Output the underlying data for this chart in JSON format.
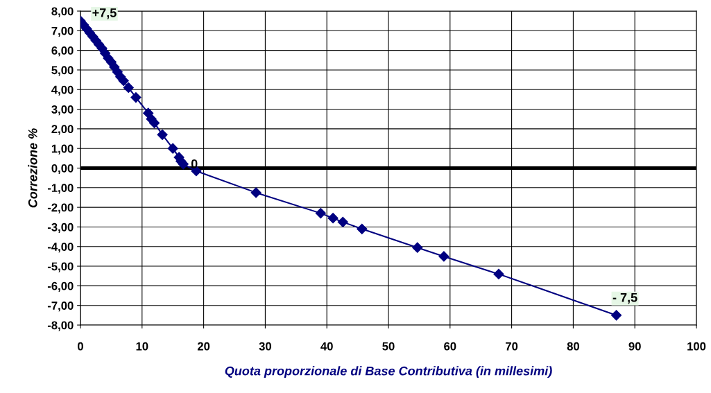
{
  "chart_data": {
    "type": "line",
    "xlabel": "Quota proporzionale di Base Contributiva (in millesimi)",
    "ylabel": "Correzione %",
    "x": [
      0,
      0.5,
      1,
      1.5,
      2,
      2.5,
      3,
      3.5,
      4,
      4.5,
      5,
      5.5,
      6,
      6.5,
      7,
      7.8,
      9,
      11,
      11.5,
      12,
      13.3,
      15,
      16,
      16.3,
      16.7,
      18.8,
      28.5,
      39,
      41,
      42.6,
      45.7,
      54.7,
      59,
      67.9,
      87
    ],
    "series": [
      {
        "color": "#000080",
        "values": [
          7.5,
          7.3,
          7.1,
          6.9,
          6.7,
          6.5,
          6.3,
          6.1,
          5.85,
          5.6,
          5.4,
          5.15,
          4.9,
          4.65,
          4.45,
          4.1,
          3.6,
          2.8,
          2.5,
          2.3,
          1.7,
          1.0,
          0.55,
          0.35,
          0.2,
          -0.15,
          -1.25,
          -2.3,
          -2.55,
          -2.75,
          -3.1,
          -4.05,
          -4.5,
          -5.4,
          -7.5
        ]
      }
    ],
    "marker": "diamond",
    "line_style": "solid",
    "grid": true,
    "legend": false,
    "xlim": [
      0,
      100
    ],
    "xticks": [
      0,
      10,
      20,
      30,
      40,
      50,
      60,
      70,
      80,
      90,
      100
    ],
    "ylim": [
      -8,
      8
    ],
    "yticks": [
      {
        "value": 8,
        "label": "8,00"
      },
      {
        "value": 7,
        "label": "7,00"
      },
      {
        "value": 6,
        "label": "6,00"
      },
      {
        "value": 5,
        "label": "5,00"
      },
      {
        "value": 4,
        "label": "4,00"
      },
      {
        "value": 3,
        "label": "3,00"
      },
      {
        "value": 2,
        "label": "2,00"
      },
      {
        "value": 1,
        "label": "1,00"
      },
      {
        "value": 0,
        "label": "0,00"
      },
      {
        "value": -1,
        "label": "-1,00"
      },
      {
        "value": -2,
        "label": "-2,00"
      },
      {
        "value": -3,
        "label": "-3,00"
      },
      {
        "value": -4,
        "label": "-4,00"
      },
      {
        "value": -5,
        "label": "-5,00"
      },
      {
        "value": -6,
        "label": "-6,00"
      },
      {
        "value": -7,
        "label": "-7,00"
      },
      {
        "value": -8,
        "label": "-8,00"
      }
    ],
    "ref_lines": [
      {
        "axis": "y",
        "value": 0,
        "color": "#000000"
      }
    ],
    "annotations": [
      {
        "text": "+7,5",
        "x": 0,
        "y": 7.5
      },
      {
        "text": "0",
        "x": 17.3,
        "y": 0
      },
      {
        "text": "- 7,5",
        "x": 87,
        "y": -7.5
      }
    ]
  }
}
